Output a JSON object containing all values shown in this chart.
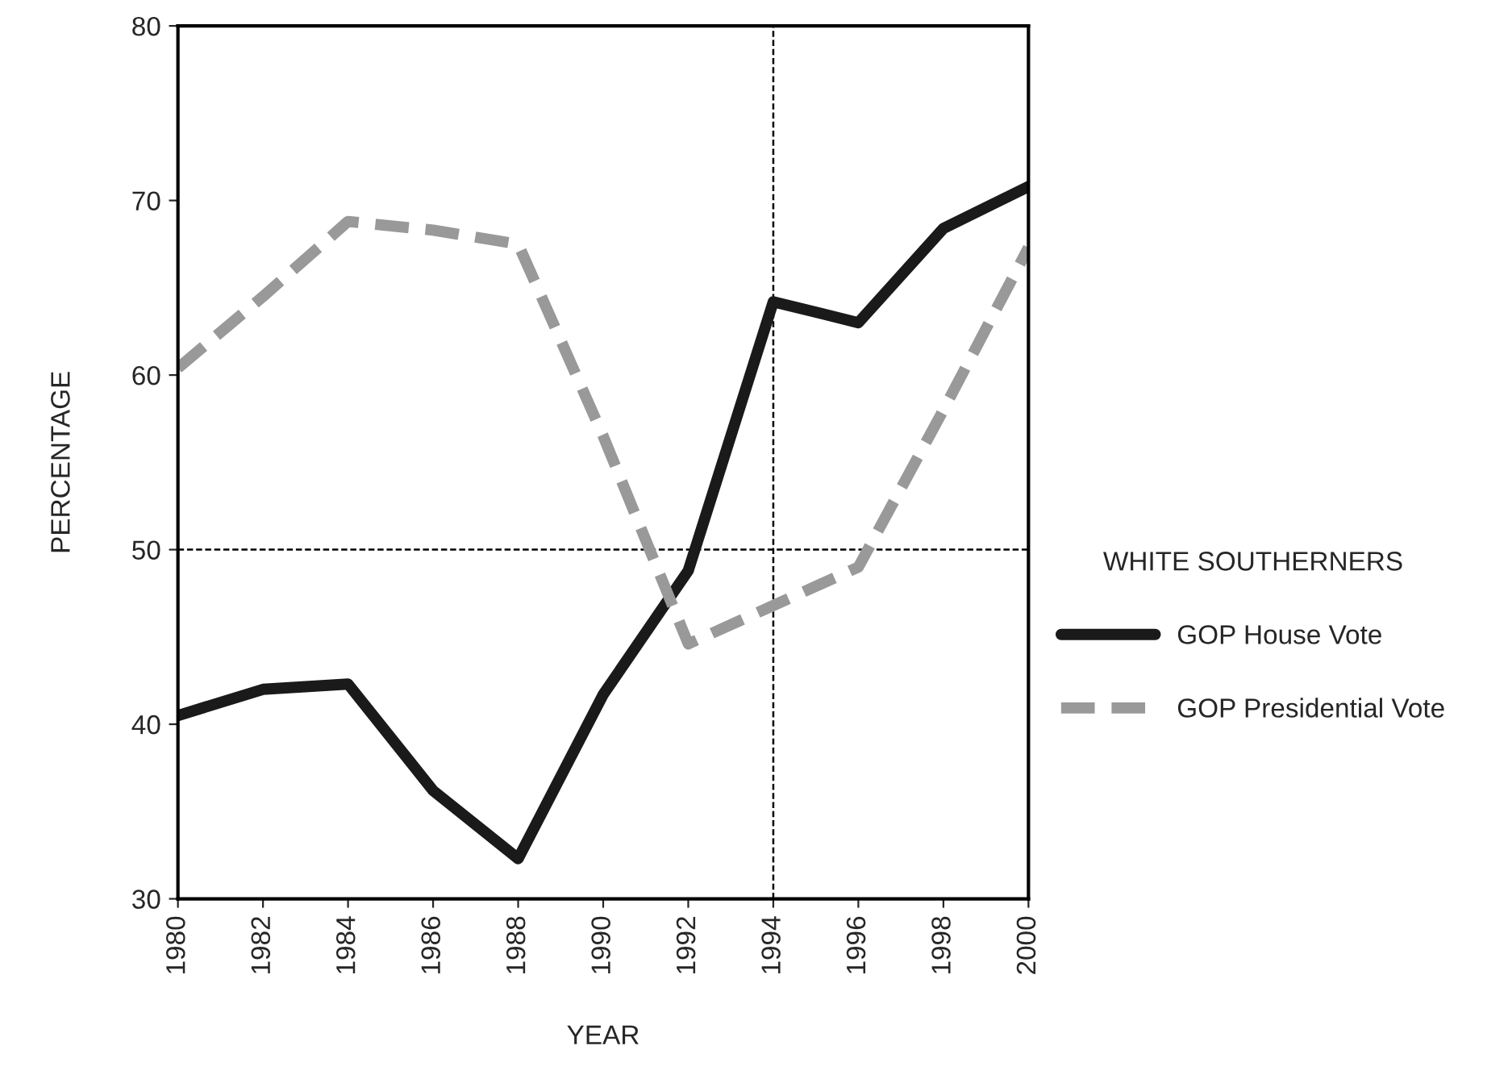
{
  "chart_data": {
    "type": "line",
    "xlabel": "YEAR",
    "ylabel": "PERCENTAGE",
    "legend_title": "WHITE SOUTHERNERS",
    "x": [
      1980,
      1982,
      1984,
      1986,
      1988,
      1990,
      1992,
      1994,
      1996,
      1998,
      2000
    ],
    "series": [
      {
        "name": "GOP House Vote",
        "color": "#1a1a1a",
        "line_style": "solid",
        "values": [
          40.5,
          42,
          42.3,
          36.2,
          32.3,
          41.7,
          48.8,
          64.2,
          63,
          68.4,
          70.8
        ]
      },
      {
        "name": "GOP Presidential Vote",
        "color": "#999999",
        "line_style": "dashed",
        "values": [
          60.4,
          64.5,
          68.8,
          68.3,
          67.5,
          56.5,
          44.6,
          46.8,
          49,
          58,
          67.3
        ]
      }
    ],
    "xlim": [
      1980,
      2000
    ],
    "xticks": [
      1980,
      1982,
      1984,
      1986,
      1988,
      1990,
      1992,
      1994,
      1996,
      1998,
      2000
    ],
    "ylim": [
      30,
      80
    ],
    "yticks": [
      30,
      40,
      50,
      60,
      70,
      80
    ],
    "ref_lines": [
      {
        "axis": "y",
        "value": 50,
        "line_style": "dashed",
        "color": "#000000"
      },
      {
        "axis": "x",
        "value": 1994,
        "line_style": "dashed",
        "color": "#000000"
      }
    ],
    "grid": false,
    "legend": "right",
    "marker": "none"
  }
}
